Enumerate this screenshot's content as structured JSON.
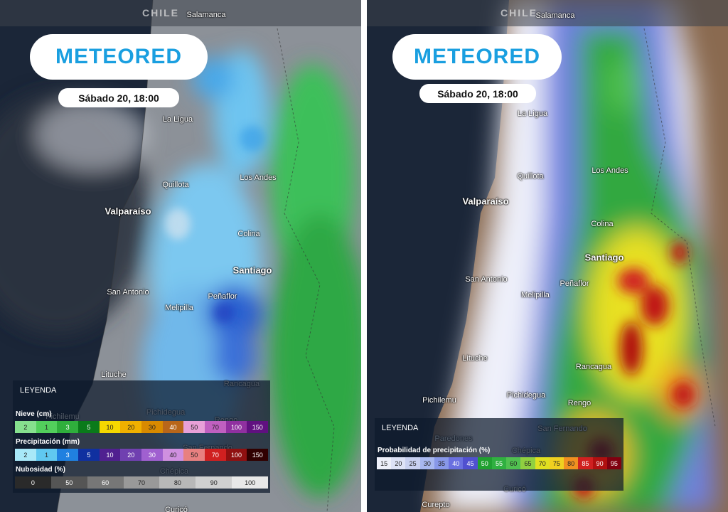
{
  "left": {
    "country": "CHILE",
    "logo": "METEORED",
    "date": "Sábado 20, 18:00",
    "places": [
      "Salamanca",
      "La Ligua",
      "Los Andes",
      "Quillota",
      "Valparaíso",
      "Colina",
      "Santiago",
      "San Antonio",
      "Peñaflor",
      "Melipilla",
      "Lituche",
      "Rancagua",
      "Pichilemu",
      "Pichidegua",
      "Rengo",
      "San Fernando",
      "Chépica",
      "Curicó"
    ],
    "legend": {
      "title": "LEYENDA",
      "scales": [
        {
          "name": "Nieve (cm)",
          "items": [
            {
              "label": "2",
              "color": "#86e08e"
            },
            {
              "label": "1",
              "color": "#52cf5c"
            },
            {
              "label": "3",
              "color": "#2fae3c"
            },
            {
              "label": "5",
              "color": "#0a7a1a"
            },
            {
              "label": "10",
              "color": "#f5d800"
            },
            {
              "label": "20",
              "color": "#f0b000"
            },
            {
              "label": "30",
              "color": "#d88a00"
            },
            {
              "label": "40",
              "color": "#b8661a"
            },
            {
              "label": "50",
              "color": "#e8a0d8"
            },
            {
              "label": "70",
              "color": "#c060c0"
            },
            {
              "label": "100",
              "color": "#9030a0"
            },
            {
              "label": "150",
              "color": "#601080"
            }
          ]
        },
        {
          "name": "Precipitación (mm)",
          "items": [
            {
              "label": "2",
              "color": "#a8e8f8"
            },
            {
              "label": "1",
              "color": "#60c8f0"
            },
            {
              "label": "3",
              "color": "#2080e0"
            },
            {
              "label": "5",
              "color": "#1030a0"
            },
            {
              "label": "10",
              "color": "#502090"
            },
            {
              "label": "20",
              "color": "#7040b0"
            },
            {
              "label": "30",
              "color": "#a060d0"
            },
            {
              "label": "40",
              "color": "#d090e0"
            },
            {
              "label": "50",
              "color": "#e88080"
            },
            {
              "label": "70",
              "color": "#d02020"
            },
            {
              "label": "100",
              "color": "#901010"
            },
            {
              "label": "150",
              "color": "#300000"
            }
          ]
        },
        {
          "name": "Nubosidad (%)",
          "items": [
            {
              "label": "0",
              "color": "#2a2a2a"
            },
            {
              "label": "50",
              "color": "#555555"
            },
            {
              "label": "60",
              "color": "#777777"
            },
            {
              "label": "70",
              "color": "#999999"
            },
            {
              "label": "80",
              "color": "#b8b8b8"
            },
            {
              "label": "90",
              "color": "#d0d0d0"
            },
            {
              "label": "100",
              "color": "#e8e8e8"
            }
          ]
        }
      ]
    }
  },
  "right": {
    "country": "CHILE",
    "logo": "METEORED",
    "date": "Sábado 20, 18:00",
    "places": [
      "Salamanca",
      "La Ligua",
      "Quillota",
      "Los Andes",
      "Valparaíso",
      "Colina",
      "Santiago",
      "San Antonio",
      "Peñaflor",
      "Melipilla",
      "Lituche",
      "Rancagua",
      "Pichidegua",
      "Pichilemu",
      "Rengo",
      "Paredones",
      "San Fernando",
      "Chépica",
      "Curicó",
      "Curepto"
    ],
    "legend": {
      "title": "LEYENDA",
      "scales": [
        {
          "name": "Probabilidad de precipitación (%)",
          "items": [
            {
              "label": "15",
              "color": "#eef0fa"
            },
            {
              "label": "20",
              "color": "#dde2f6"
            },
            {
              "label": "25",
              "color": "#c8d0f0"
            },
            {
              "label": "30",
              "color": "#a8b8f0"
            },
            {
              "label": "35",
              "color": "#8898e8"
            },
            {
              "label": "40",
              "color": "#6a70e0"
            },
            {
              "label": "45",
              "color": "#5050d0"
            },
            {
              "label": "50",
              "color": "#20a030"
            },
            {
              "label": "55",
              "color": "#30b040"
            },
            {
              "label": "60",
              "color": "#50c050"
            },
            {
              "label": "65",
              "color": "#90d040"
            },
            {
              "label": "70",
              "color": "#e0e020"
            },
            {
              "label": "75",
              "color": "#f0d020"
            },
            {
              "label": "80",
              "color": "#f09020"
            },
            {
              "label": "85",
              "color": "#d02020"
            },
            {
              "label": "90",
              "color": "#b01010"
            },
            {
              "label": "95",
              "color": "#800010"
            }
          ]
        }
      ]
    }
  }
}
